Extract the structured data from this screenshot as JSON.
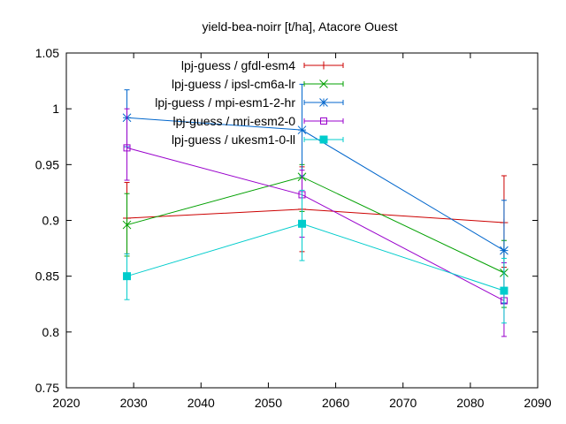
{
  "chart_data": {
    "type": "line",
    "title": "yield-bea-noirr [t/ha], Atacore Ouest",
    "xlabel": "",
    "ylabel": "",
    "xlim": [
      2020,
      2090
    ],
    "ylim": [
      0.75,
      1.05
    ],
    "x_ticks": [
      2020,
      2030,
      2040,
      2050,
      2060,
      2070,
      2080,
      2090
    ],
    "y_ticks": [
      0.75,
      0.8,
      0.85,
      0.9,
      0.95,
      1,
      1.05
    ],
    "x_tick_labels": [
      "2020",
      "2030",
      "2040",
      "2050",
      "2060",
      "2070",
      "2080",
      "2090"
    ],
    "y_tick_labels": [
      "0.75",
      "0.8",
      "0.85",
      "0.9",
      "0.95",
      "1",
      "1.05"
    ],
    "legend_position": "top-right",
    "grid": false,
    "series": [
      {
        "name": "lpj-guess / gfdl-esm4",
        "color": "#cc0000",
        "marker": "plus",
        "x": [
          2029,
          2055,
          2085
        ],
        "y": [
          0.902,
          0.91,
          0.898
        ],
        "err_low": [
          0.87,
          0.872,
          0.858
        ],
        "err_high": [
          0.934,
          0.948,
          0.94
        ]
      },
      {
        "name": "lpj-guess / ipsl-cm6a-lr",
        "color": "#00a000",
        "marker": "x",
        "x": [
          2029,
          2055,
          2085
        ],
        "y": [
          0.896,
          0.939,
          0.853
        ],
        "err_low": [
          0.868,
          0.908,
          0.822
        ],
        "err_high": [
          0.924,
          0.95,
          0.882
        ]
      },
      {
        "name": "lpj-guess / mpi-esm1-2-hr",
        "color": "#0066cc",
        "marker": "star",
        "x": [
          2029,
          2055,
          2085
        ],
        "y": [
          0.992,
          0.981,
          0.873
        ],
        "err_low": [
          0.966,
          0.94,
          0.826
        ],
        "err_high": [
          1.017,
          1.022,
          0.918
        ]
      },
      {
        "name": "lpj-guess / mri-esm2-0",
        "color": "#9900cc",
        "marker": "square-open",
        "x": [
          2029,
          2055,
          2085
        ],
        "y": [
          0.965,
          0.923,
          0.828
        ],
        "err_low": [
          0.936,
          0.885,
          0.796
        ],
        "err_high": [
          1.0,
          0.945,
          0.862
        ]
      },
      {
        "name": "lpj-guess / ukesm1-0-ll",
        "color": "#00cccc",
        "marker": "square-filled",
        "x": [
          2029,
          2055,
          2085
        ],
        "y": [
          0.85,
          0.897,
          0.837
        ],
        "err_low": [
          0.829,
          0.864,
          0.808
        ],
        "err_high": [
          0.87,
          0.927,
          0.866
        ]
      }
    ]
  }
}
